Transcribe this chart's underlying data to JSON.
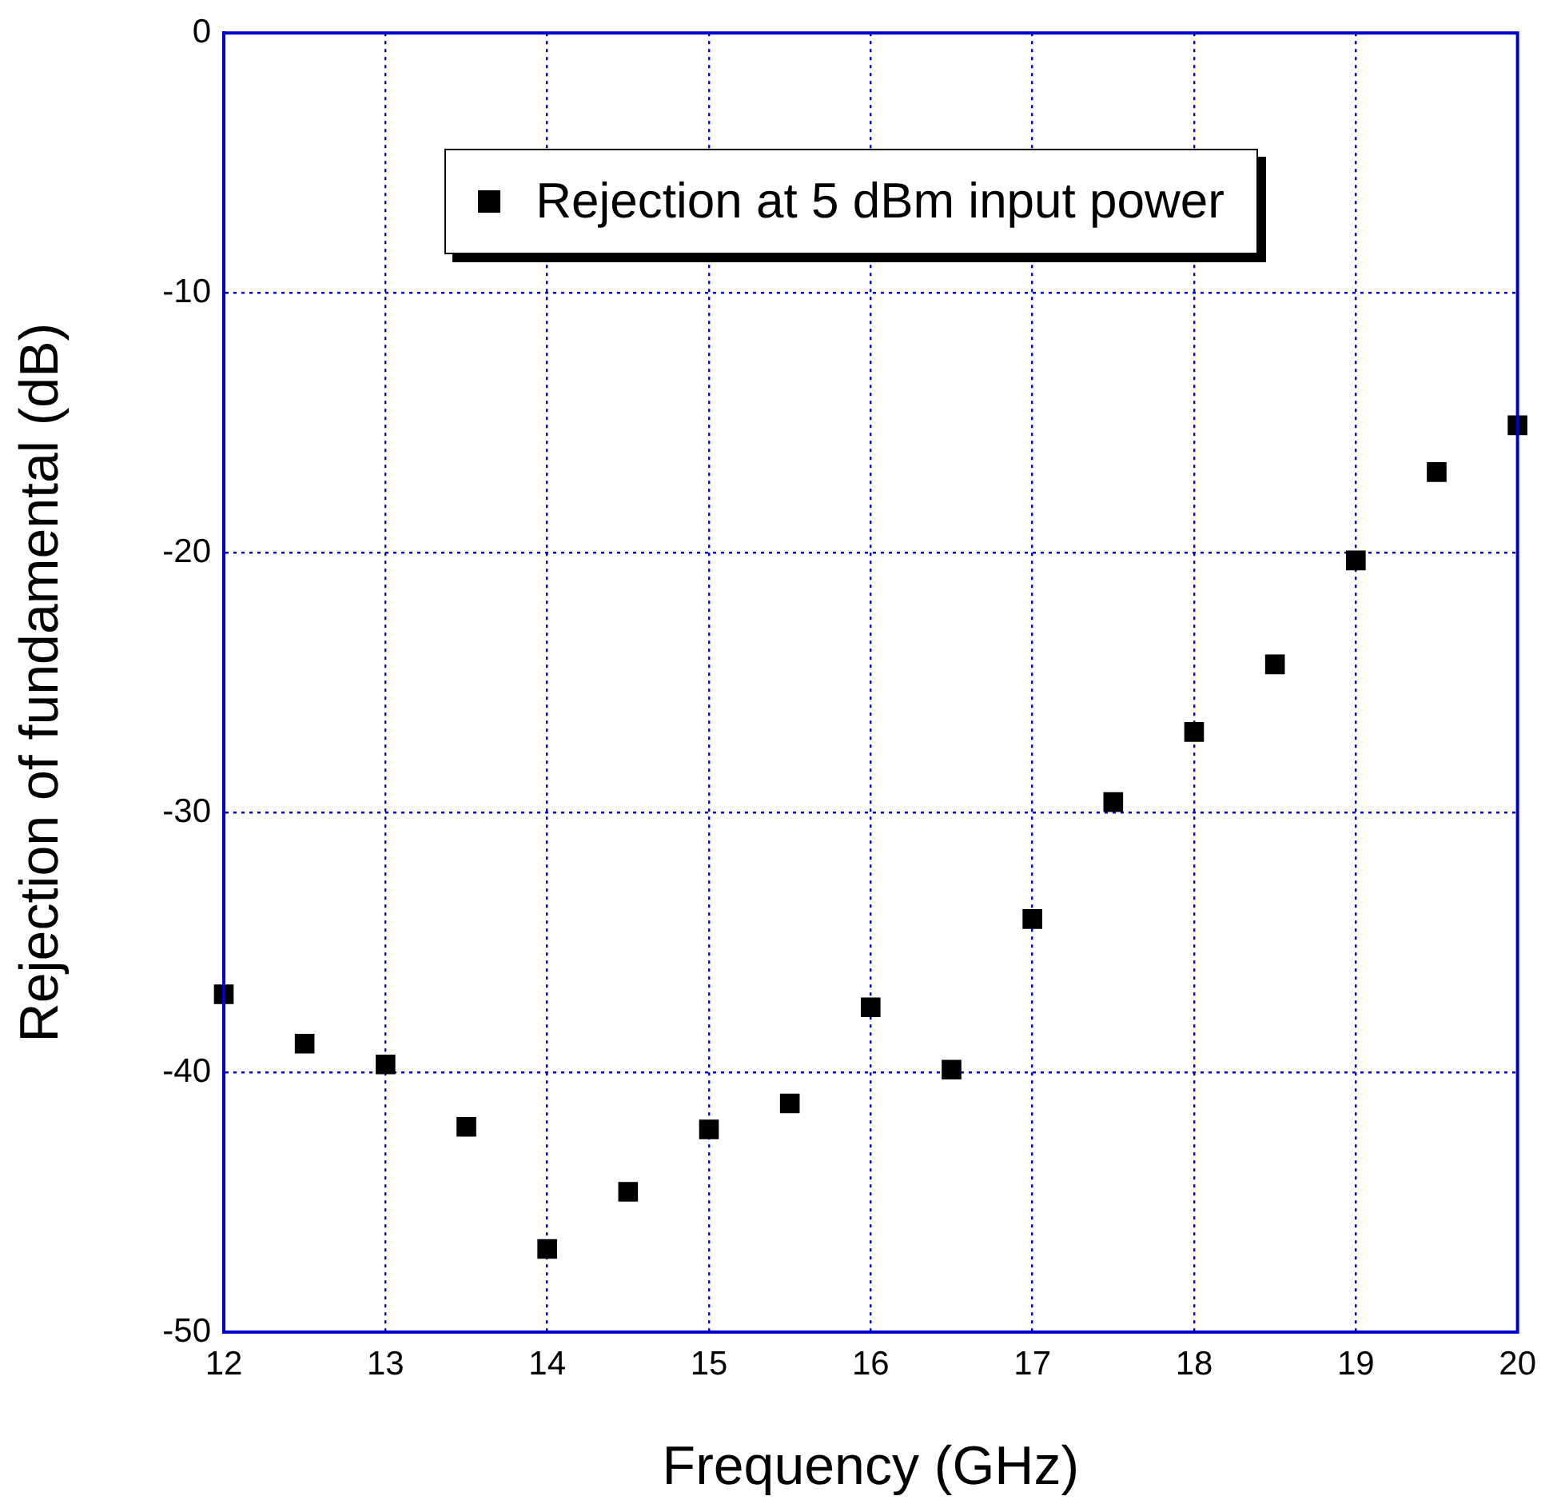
{
  "chart_data": {
    "type": "scatter",
    "xlabel": "Frequency (GHz)",
    "ylabel": "Rejection of fundamental (dB)",
    "x": [
      12,
      12.5,
      13,
      13.5,
      14,
      14.5,
      15,
      15.5,
      16,
      16.5,
      17,
      17.5,
      18,
      18.5,
      19,
      19.5,
      20
    ],
    "series": [
      {
        "name": "Rejection at 5 dBm input power",
        "color": "#000000",
        "values": [
          -37.0,
          -38.9,
          -39.7,
          -42.1,
          -46.8,
          -44.6,
          -42.2,
          -41.2,
          -37.5,
          -39.9,
          -34.1,
          -29.6,
          -26.9,
          -24.3,
          -20.3,
          -16.9,
          -15.1
        ]
      }
    ],
    "xlim": [
      12,
      20
    ],
    "xticks": [
      12,
      13,
      14,
      15,
      16,
      17,
      18,
      19,
      20
    ],
    "ylim": [
      -50,
      0
    ],
    "yticks": [
      -50,
      -40,
      -30,
      -20,
      -10,
      0
    ],
    "grid": true,
    "legend": "top",
    "marker": "square"
  }
}
